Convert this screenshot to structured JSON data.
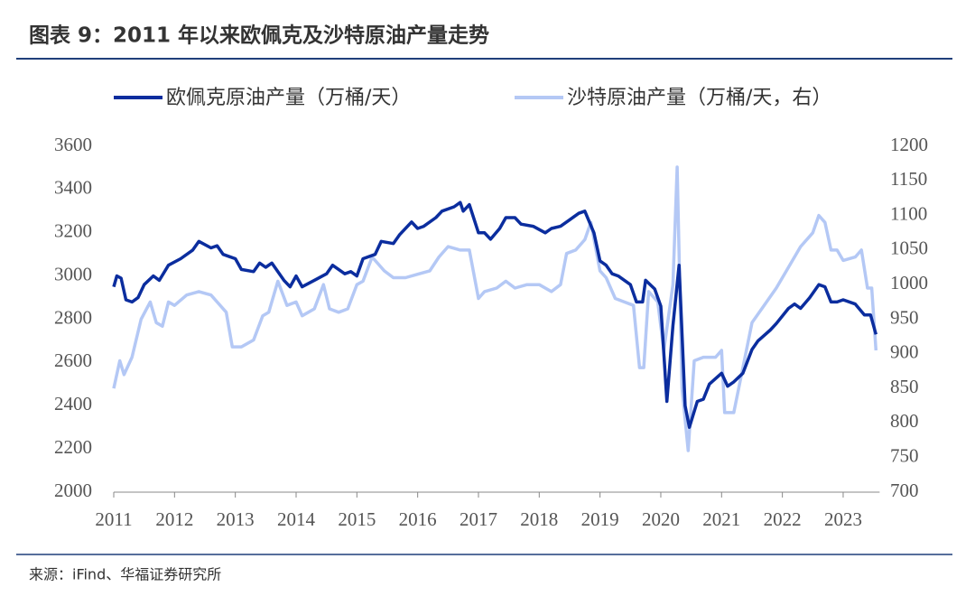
{
  "chart_data": {
    "type": "line",
    "title": "图表 9：2011 年以来欧佩克及沙特原油产量走势",
    "source": "来源：iFind、华福证券研究所",
    "xlim": [
      2011,
      2023.6
    ],
    "xticks": [
      2011,
      2012,
      2013,
      2014,
      2015,
      2016,
      2017,
      2018,
      2019,
      2020,
      2021,
      2022,
      2023
    ],
    "ylim": [
      2000,
      3600
    ],
    "yticks": [
      2000,
      2200,
      2400,
      2600,
      2800,
      3000,
      3200,
      3400,
      3600
    ],
    "y2lim": [
      700,
      1200
    ],
    "y2ticks": [
      700,
      750,
      800,
      850,
      900,
      950,
      1000,
      1050,
      1100,
      1150,
      1200
    ],
    "legend": "top",
    "series": [
      {
        "name": "欧佩克原油产量（万桶/天）",
        "color": "#0b2d9e",
        "x": [
          2011.0,
          2011.05,
          2011.12,
          2011.2,
          2011.3,
          2011.4,
          2011.5,
          2011.65,
          2011.75,
          2011.9,
          2012.1,
          2012.3,
          2012.4,
          2012.6,
          2012.7,
          2012.8,
          2013.0,
          2013.1,
          2013.3,
          2013.4,
          2013.5,
          2013.6,
          2013.8,
          2013.9,
          2014.0,
          2014.1,
          2014.3,
          2014.5,
          2014.6,
          2014.8,
          2014.9,
          2015.0,
          2015.1,
          2015.3,
          2015.4,
          2015.6,
          2015.7,
          2015.9,
          2016.0,
          2016.1,
          2016.3,
          2016.4,
          2016.6,
          2016.7,
          2016.75,
          2016.85,
          2017.0,
          2017.1,
          2017.2,
          2017.35,
          2017.45,
          2017.6,
          2017.7,
          2017.9,
          2018.1,
          2018.2,
          2018.35,
          2018.5,
          2018.65,
          2018.75,
          2018.9,
          2019.0,
          2019.1,
          2019.2,
          2019.3,
          2019.5,
          2019.6,
          2019.7,
          2019.75,
          2019.9,
          2020.0,
          2020.1,
          2020.2,
          2020.3,
          2020.4,
          2020.47,
          2020.6,
          2020.7,
          2020.8,
          2021.0,
          2021.1,
          2021.2,
          2021.35,
          2021.5,
          2021.6,
          2021.8,
          2021.9,
          2022.1,
          2022.2,
          2022.3,
          2022.45,
          2022.6,
          2022.7,
          2022.8,
          2022.9,
          2023.0,
          2023.2,
          2023.35,
          2023.45,
          2023.54
        ],
        "values": [
          2950,
          3000,
          2990,
          2890,
          2880,
          2900,
          2960,
          3000,
          2980,
          3050,
          3080,
          3120,
          3160,
          3130,
          3140,
          3100,
          3080,
          3030,
          3020,
          3060,
          3040,
          3060,
          2980,
          2950,
          3000,
          2950,
          2980,
          3010,
          3050,
          3010,
          3020,
          3000,
          3080,
          3100,
          3160,
          3150,
          3190,
          3250,
          3220,
          3230,
          3270,
          3300,
          3320,
          3340,
          3300,
          3330,
          3200,
          3200,
          3170,
          3220,
          3270,
          3270,
          3240,
          3230,
          3200,
          3220,
          3230,
          3260,
          3290,
          3300,
          3200,
          3070,
          3050,
          3010,
          3000,
          2960,
          2880,
          2880,
          2980,
          2940,
          2860,
          2420,
          2770,
          3050,
          2400,
          2300,
          2420,
          2430,
          2500,
          2550,
          2490,
          2510,
          2550,
          2660,
          2700,
          2750,
          2780,
          2850,
          2870,
          2850,
          2900,
          2960,
          2950,
          2880,
          2880,
          2890,
          2870,
          2820,
          2820,
          2730
        ]
      },
      {
        "name": "沙特原油产量（万桶/天，右）",
        "color": "#b4c8f5",
        "axis": "y2",
        "x": [
          2011.0,
          2011.1,
          2011.17,
          2011.3,
          2011.45,
          2011.6,
          2011.7,
          2011.8,
          2011.9,
          2012.0,
          2012.2,
          2012.4,
          2012.6,
          2012.7,
          2012.85,
          2012.95,
          2013.1,
          2013.3,
          2013.45,
          2013.55,
          2013.7,
          2013.85,
          2014.0,
          2014.1,
          2014.3,
          2014.45,
          2014.55,
          2014.7,
          2014.85,
          2015.0,
          2015.1,
          2015.25,
          2015.45,
          2015.6,
          2015.8,
          2016.0,
          2016.2,
          2016.35,
          2016.5,
          2016.7,
          2016.85,
          2017.0,
          2017.1,
          2017.3,
          2017.45,
          2017.6,
          2017.8,
          2018.0,
          2018.2,
          2018.35,
          2018.45,
          2018.6,
          2018.75,
          2018.85,
          2019.0,
          2019.1,
          2019.25,
          2019.4,
          2019.55,
          2019.65,
          2019.72,
          2019.8,
          2019.95,
          2020.05,
          2020.2,
          2020.27,
          2020.35,
          2020.45,
          2020.55,
          2020.7,
          2020.9,
          2021.0,
          2021.05,
          2021.2,
          2021.35,
          2021.5,
          2021.7,
          2021.9,
          2022.1,
          2022.3,
          2022.5,
          2022.6,
          2022.7,
          2022.8,
          2022.9,
          2023.0,
          2023.2,
          2023.3,
          2023.4,
          2023.47,
          2023.54
        ],
        "values": [
          850,
          890,
          870,
          895,
          950,
          975,
          945,
          940,
          975,
          970,
          985,
          990,
          985,
          975,
          960,
          910,
          910,
          920,
          955,
          960,
          1005,
          970,
          975,
          955,
          965,
          1000,
          965,
          960,
          965,
          1000,
          1005,
          1040,
          1020,
          1010,
          1010,
          1015,
          1020,
          1040,
          1055,
          1050,
          1050,
          980,
          990,
          995,
          1005,
          995,
          1000,
          1000,
          990,
          1000,
          1045,
          1050,
          1065,
          1090,
          1020,
          1010,
          980,
          975,
          970,
          880,
          880,
          990,
          975,
          905,
          1000,
          1170,
          850,
          760,
          890,
          895,
          895,
          905,
          815,
          815,
          880,
          945,
          970,
          995,
          1025,
          1055,
          1075,
          1100,
          1090,
          1050,
          1050,
          1035,
          1040,
          1050,
          995,
          995,
          905
        ]
      }
    ]
  }
}
